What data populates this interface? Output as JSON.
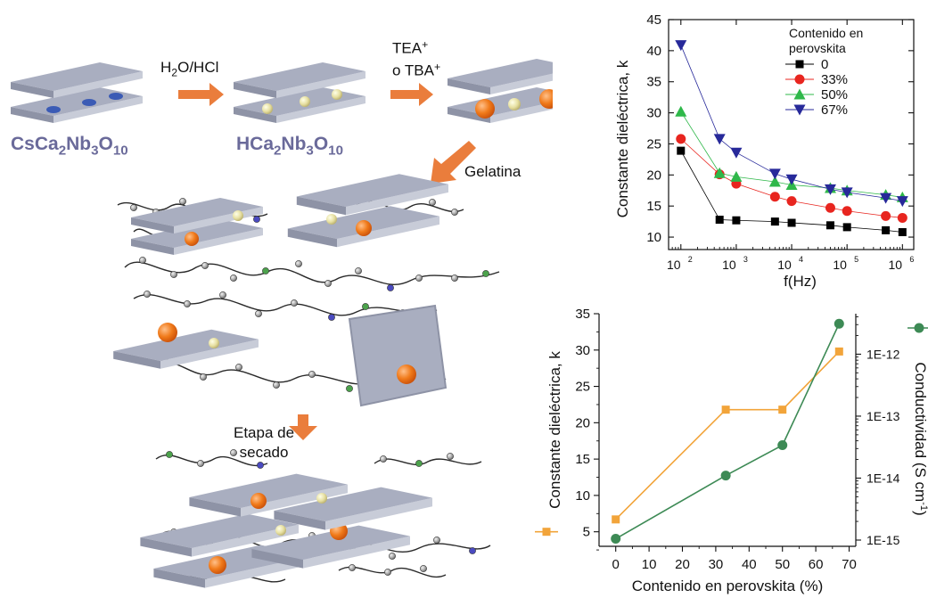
{
  "scheme": {
    "step1": "H2O/HCl",
    "step2_line1": "TEA+",
    "step2_line2": "o TBA+",
    "step3": "Gelatina",
    "step4_line1": "Etapa de",
    "step4_line2": "secado",
    "compound1": "CsCa2Nb3O10",
    "compound2": "HCa2Nb3O10",
    "colors": {
      "sheet": "#a9aec0",
      "arrow": "#ea7d3c",
      "formula": "#6a6a9a",
      "ball_orange": "#f07a1a",
      "ball_yellow": "#e6dfa0",
      "ball_blue": "#3b5bb5"
    }
  },
  "chart_data": [
    {
      "type": "line",
      "xscale": "log",
      "xlabel": "f(Hz)",
      "ylabel": "Constante dieléctrica, k",
      "ylim": [
        8,
        45
      ],
      "yticks": [
        10,
        15,
        20,
        25,
        30,
        35,
        40,
        45
      ],
      "xticks": [
        100,
        1000,
        10000,
        100000,
        1000000
      ],
      "xticklabels": [
        "10",
        "10",
        "10",
        "10",
        "10"
      ],
      "xtickexp": [
        "2",
        "3",
        "4",
        "5",
        "6"
      ],
      "legend_title": "Contenido en perovskita",
      "legend_title_lines": [
        "Contenido en",
        "perovskita"
      ],
      "legend_position": "top-right",
      "x": [
        100,
        500,
        1000,
        5000,
        10000,
        50000,
        100000,
        500000,
        1000000
      ],
      "series": [
        {
          "name": "0",
          "color": "#000000",
          "marker": "square",
          "values": [
            23.9,
            12.8,
            12.7,
            12.5,
            12.3,
            11.9,
            11.6,
            11.1,
            10.8
          ]
        },
        {
          "name": "33%",
          "color": "#e8251f",
          "marker": "circle",
          "values": [
            25.8,
            20.1,
            18.6,
            16.5,
            15.8,
            14.7,
            14.2,
            13.4,
            13.1
          ]
        },
        {
          "name": "50%",
          "color": "#2fb84a",
          "marker": "triangle-up",
          "values": [
            30.2,
            20.3,
            19.7,
            18.9,
            18.4,
            17.9,
            17.5,
            16.8,
            16.4
          ]
        },
        {
          "name": "67%",
          "color": "#27299a",
          "marker": "triangle-down",
          "values": [
            40.9,
            25.8,
            23.6,
            20.2,
            19.3,
            17.7,
            17.2,
            16.3,
            15.8
          ]
        }
      ]
    },
    {
      "type": "line",
      "xlabel": "Contenido en perovskita (%)",
      "ylabel": "Constante dieléctrica, k",
      "ylabel_right": "Conductividad (S cm-1)",
      "ylabel_right_main": "Conductividad (S cm",
      "ylabel_right_exp": "-1",
      "ylabel_right_end": ")",
      "xlim": [
        -5,
        72
      ],
      "ylim": [
        3,
        35
      ],
      "xticks": [
        0,
        10,
        20,
        30,
        40,
        50,
        60,
        70
      ],
      "yticks": [
        5,
        10,
        15,
        20,
        25,
        30,
        35
      ],
      "y2scale": "log",
      "y2lim": [
        1e-15,
        4.5e-12
      ],
      "y2ticks": [
        1e-15,
        1e-14,
        1e-13,
        1e-12
      ],
      "y2ticklabels": [
        "1E-15",
        "1E-14",
        "1E-13",
        "1E-12"
      ],
      "x": [
        0,
        33,
        50,
        67
      ],
      "series": [
        {
          "axis": "left",
          "color": "#f2a43a",
          "marker": "square",
          "values": [
            6.7,
            21.8,
            21.8,
            29.8
          ]
        },
        {
          "axis": "right",
          "color": "#3d8a55",
          "marker": "circle",
          "values": [
            1.05e-15,
            1.1e-14,
            3.4e-14,
            3.1e-12
          ]
        }
      ]
    }
  ]
}
